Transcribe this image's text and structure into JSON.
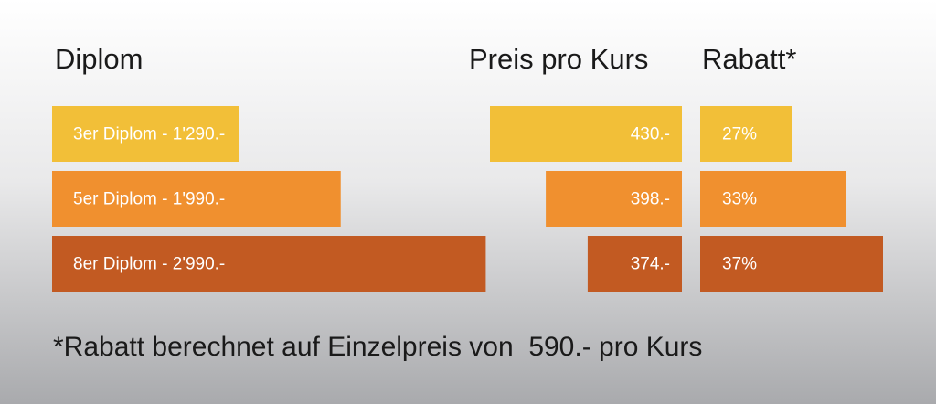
{
  "chart_data": [
    {
      "type": "bar",
      "orientation": "horizontal",
      "title": "Diplom",
      "values": [
        1290,
        1990,
        2990
      ],
      "value_labels": [
        "3er Diplom - 1'290.-",
        "5er Diplom - 1'990.-",
        "8er Diplom - 2'990.-"
      ],
      "colors": [
        "#f2bf38",
        "#f0902f",
        "#c25a22"
      ],
      "xlim": [
        0,
        3000
      ]
    },
    {
      "type": "bar",
      "orientation": "horizontal",
      "title": "Preis pro Kurs",
      "values": [
        430,
        398,
        374
      ],
      "value_labels": [
        "430.-",
        "398.-",
        "374.-"
      ],
      "colors": [
        "#f2bf38",
        "#f0902f",
        "#c25a22"
      ],
      "xlim": [
        320,
        430
      ]
    },
    {
      "type": "bar",
      "orientation": "horizontal",
      "title": "Rabatt*",
      "values": [
        27,
        33,
        37
      ],
      "value_labels": [
        "27%",
        "33%",
        "37%"
      ],
      "colors": [
        "#f2bf38",
        "#f0902f",
        "#c25a22"
      ],
      "xlim": [
        17,
        37
      ]
    }
  ],
  "footnote": "*Rabatt berechnet auf Einzelpreis von  590.- pro Kurs"
}
